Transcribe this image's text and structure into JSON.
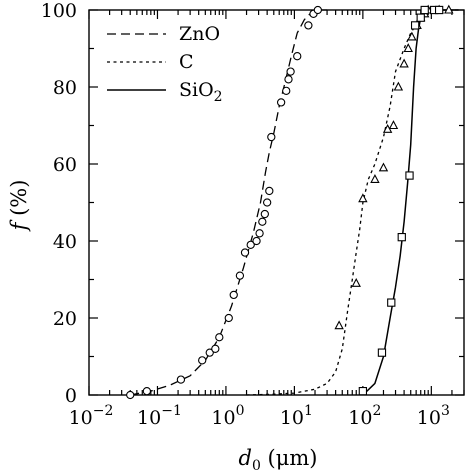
{
  "chart_data": {
    "type": "line",
    "title": "",
    "xlabel": {
      "symbol": "d",
      "subscript": "0",
      "unit": " (μm)"
    },
    "ylabel": {
      "symbol": "f",
      "unit": " (%)"
    },
    "x_scale": "log",
    "xlim": [
      0.01,
      3000
    ],
    "ylim": [
      0,
      100
    ],
    "x_ticks": [
      {
        "base": "10",
        "exp": "−2"
      },
      {
        "base": "10",
        "exp": "−1"
      },
      {
        "base": "10",
        "exp": "0"
      },
      {
        "base": "10",
        "exp": "1"
      },
      {
        "base": "10",
        "exp": "2"
      },
      {
        "base": "10",
        "exp": "3"
      }
    ],
    "x_tick_values": [
      0.01,
      0.1,
      1,
      10,
      100,
      1000
    ],
    "y_ticks": [
      "0",
      "20",
      "40",
      "60",
      "80",
      "100"
    ],
    "y_tick_values": [
      0,
      20,
      40,
      60,
      80,
      100
    ],
    "grid": false,
    "legend": "top-left",
    "series": [
      {
        "name": "ZnO",
        "name_sub": "",
        "line_style": "dashed",
        "marker": "circle",
        "curve": {
          "x": [
            0.04,
            0.08,
            0.15,
            0.3,
            0.5,
            0.8,
            1.2,
            1.8,
            2.5,
            3.2,
            3.8,
            4.3,
            5,
            6,
            7.5,
            9,
            11,
            14,
            18,
            22,
            30
          ],
          "y": [
            0,
            1,
            2.5,
            5,
            9,
            15,
            23,
            33,
            42,
            50,
            58,
            63,
            68,
            75,
            82,
            88,
            94,
            97.5,
            99.5,
            100,
            100
          ]
        },
        "points": {
          "x": [
            0.04,
            0.07,
            0.22,
            0.45,
            0.58,
            0.7,
            0.8,
            1.1,
            1.3,
            1.6,
            1.9,
            2.3,
            2.8,
            3.1,
            3.4,
            3.7,
            4.0,
            4.3,
            4.6,
            6.4,
            7.6,
            8.2,
            8.8,
            11,
            16,
            19,
            22
          ],
          "y": [
            0,
            1,
            4,
            9,
            11,
            12,
            15,
            20,
            26,
            31,
            37,
            39,
            40,
            42,
            45,
            47,
            50,
            53,
            67,
            76,
            79,
            82,
            84,
            88,
            96,
            99,
            100
          ]
        }
      },
      {
        "name": "C",
        "name_sub": "",
        "line_style": "dotted",
        "marker": "triangle",
        "curve": {
          "x": [
            2,
            5,
            10,
            20,
            30,
            40,
            50,
            60,
            70,
            80,
            90,
            100,
            120,
            150,
            200,
            250,
            300,
            400,
            500,
            700,
            1000,
            1500,
            2000
          ],
          "y": [
            0,
            0.2,
            0.5,
            1.5,
            3,
            6,
            12,
            22,
            30,
            37,
            43,
            50,
            56,
            60,
            67,
            75,
            84,
            90,
            94,
            98,
            99.5,
            100,
            100
          ]
        },
        "points": {
          "x": [
            45,
            80,
            100,
            150,
            200,
            230,
            280,
            330,
            400,
            460,
            520,
            620,
            700,
            800,
            900,
            1300,
            1800
          ],
          "y": [
            18,
            29,
            51,
            56,
            59,
            69,
            70,
            80,
            86,
            90,
            93,
            96,
            98,
            99,
            100,
            100,
            100
          ]
        }
      },
      {
        "name": "SiO",
        "name_sub": "2",
        "line_style": "solid",
        "marker": "square",
        "curve": {
          "x": [
            100,
            150,
            200,
            250,
            300,
            350,
            400,
            450,
            500,
            550,
            600,
            650,
            700,
            800,
            1000,
            1500,
            2500
          ],
          "y": [
            0,
            3,
            10,
            20,
            28,
            36,
            45,
            55,
            65,
            80,
            90,
            95,
            98,
            100,
            100,
            100,
            100
          ]
        },
        "points": {
          "x": [
            100,
            190,
            260,
            370,
            480,
            580,
            700,
            800,
            1100,
            1300
          ],
          "y": [
            1,
            11,
            24,
            41,
            57,
            96,
            98,
            100,
            100,
            100
          ]
        }
      }
    ]
  }
}
